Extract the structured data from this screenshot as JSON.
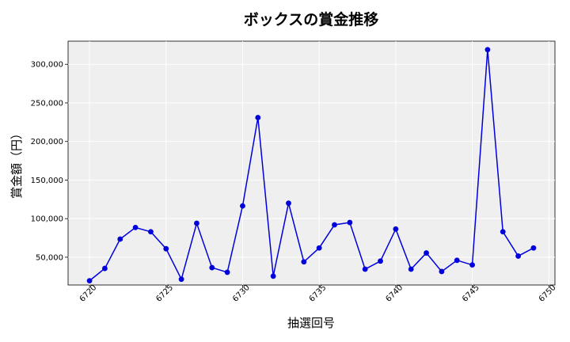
{
  "chart_data": {
    "type": "line",
    "title": "ボックスの賞金推移",
    "xlabel": "抽選回号",
    "ylabel": "賞金額（円）",
    "xlim": [
      6718.6,
      6750.4
    ],
    "ylim": [
      14000,
      330000
    ],
    "xticks": [
      6720,
      6725,
      6730,
      6735,
      6740,
      6745,
      6750
    ],
    "yticks": [
      50000,
      100000,
      150000,
      200000,
      250000,
      300000
    ],
    "ytick_labels": [
      "50,000",
      "100,000",
      "150,000",
      "200,000",
      "250,000",
      "300,000"
    ],
    "grid": true,
    "line_color": "#0000dd",
    "plot_background": "#efefef",
    "series": [
      {
        "x": [
          6720,
          6721,
          6722,
          6723,
          6724,
          6725,
          6726,
          6727,
          6728,
          6729,
          6730,
          6731,
          6732,
          6733,
          6734,
          6735,
          6736,
          6737,
          6738,
          6739,
          6740,
          6741,
          6742,
          6743,
          6744,
          6745,
          6746,
          6747,
          6748,
          6749
        ],
        "values": [
          19500,
          35500,
          73500,
          88500,
          83000,
          61000,
          21500,
          94000,
          36500,
          30500,
          116500,
          231000,
          25500,
          120000,
          44000,
          62000,
          92000,
          95000,
          34500,
          45000,
          86500,
          34500,
          55500,
          31500,
          46000,
          40000,
          319000,
          83000,
          51500,
          62000
        ]
      }
    ]
  }
}
